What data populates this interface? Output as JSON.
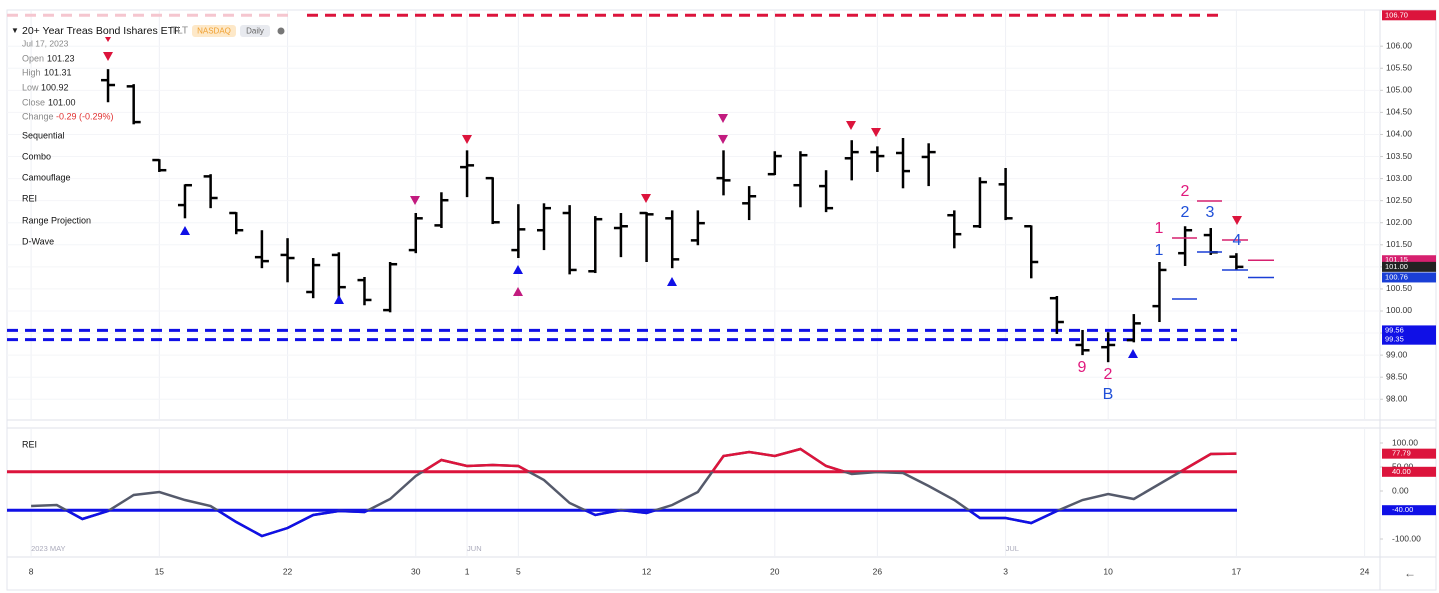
{
  "header": {
    "title": "20+ Year Treas Bond Ishares ETF",
    "symbol": "TLT",
    "exchange": "NASDAQ",
    "interval": "Daily",
    "date": "Jul 17, 2023",
    "open_label": "Open",
    "open_value": "101.23",
    "high_label": "High",
    "high_value": "101.31",
    "low_label": "Low",
    "low_value": "100.92",
    "close_label": "Close",
    "close_value": "101.00",
    "change_label": "Change",
    "change_value": "-0.29 (-0.29%)"
  },
  "menu": [
    "Sequential",
    "Combo",
    "Camouflage",
    "REI",
    "Range Projection",
    "D-Wave"
  ],
  "chart_data": [
    {
      "type": "ohlc",
      "color": "#000000",
      "x": [
        3,
        4,
        5,
        6,
        7,
        8,
        9,
        10,
        11,
        12,
        13,
        14,
        15,
        16,
        17,
        18,
        19,
        20,
        21,
        22,
        23,
        24,
        25,
        26,
        27,
        28,
        29,
        30,
        31,
        32,
        33,
        34,
        35,
        36,
        37,
        38,
        39,
        40,
        41,
        42,
        43,
        44,
        45,
        46,
        47
      ],
      "open": [
        105.23,
        105.09,
        103.42,
        102.4,
        103.05,
        102.22,
        101.22,
        101.27,
        100.43,
        101.27,
        100.7,
        100.02,
        101.38,
        101.94,
        103.26,
        103.01,
        101.38,
        101.83,
        102.22,
        100.9,
        101.88,
        102.22,
        102.1,
        101.6,
        103.01,
        102.44,
        103.1,
        102.85,
        102.83,
        103.46,
        103.6,
        103.58,
        103.49,
        102.17,
        101.92,
        102.87,
        101.92,
        100.29,
        99.23,
        99.18,
        99.34,
        100.11,
        101.31,
        101.72,
        101.23
      ],
      "high": [
        105.48,
        105.14,
        103.44,
        102.87,
        103.1,
        102.24,
        101.83,
        101.65,
        101.2,
        101.33,
        100.77,
        101.11,
        102.22,
        102.69,
        103.64,
        103.03,
        102.42,
        102.44,
        102.4,
        102.15,
        102.22,
        102.24,
        102.28,
        102.28,
        103.64,
        102.83,
        103.62,
        103.62,
        103.19,
        103.87,
        103.73,
        103.92,
        103.8,
        102.28,
        103.03,
        103.24,
        101.94,
        100.34,
        99.57,
        99.52,
        99.93,
        101.11,
        101.92,
        101.88,
        101.31
      ],
      "low": [
        104.73,
        104.23,
        103.15,
        102.1,
        102.33,
        101.74,
        100.97,
        100.65,
        100.29,
        100.29,
        100.13,
        99.97,
        101.31,
        101.88,
        102.58,
        101.97,
        101.2,
        101.38,
        100.83,
        100.86,
        101.22,
        101.11,
        100.97,
        101.49,
        102.62,
        102.06,
        103.08,
        102.35,
        102.24,
        102.96,
        103.15,
        102.78,
        102.83,
        101.42,
        101.88,
        102.06,
        100.74,
        99.48,
        99.0,
        98.84,
        99.29,
        99.75,
        101.02,
        101.27,
        100.92
      ],
      "close": [
        105.12,
        104.28,
        103.19,
        102.85,
        102.56,
        101.83,
        101.13,
        101.2,
        101.04,
        100.54,
        100.25,
        101.06,
        102.1,
        102.51,
        103.3,
        102.01,
        101.85,
        102.33,
        100.93,
        102.08,
        101.92,
        102.19,
        101.17,
        101.99,
        102.96,
        102.6,
        103.51,
        103.53,
        102.33,
        103.6,
        103.51,
        103.17,
        103.6,
        101.74,
        102.92,
        102.1,
        101.11,
        99.75,
        99.11,
        99.23,
        99.72,
        100.93,
        101.83,
        101.33,
        101.0
      ],
      "xlim": [
        -0.94,
        52.6
      ],
      "xticks": [
        {
          "value": 0,
          "label": "8"
        },
        {
          "value": 5,
          "label": "15"
        },
        {
          "value": 10,
          "label": "22"
        },
        {
          "value": 15,
          "label": "30"
        },
        {
          "value": 17,
          "label": "1"
        },
        {
          "value": 19,
          "label": "5"
        },
        {
          "value": 24,
          "label": "12"
        },
        {
          "value": 29,
          "label": "20"
        },
        {
          "value": 33,
          "label": "26"
        },
        {
          "value": 38,
          "label": "3"
        },
        {
          "value": 42,
          "label": "10"
        },
        {
          "value": 47,
          "label": "17"
        },
        {
          "value": 52,
          "label": "24"
        }
      ],
      "month_ticks": [
        {
          "value": 0,
          "label": "2023 MAY"
        },
        {
          "value": 17,
          "label": "JUN"
        },
        {
          "value": 38,
          "label": "JUL"
        }
      ],
      "ylim": [
        97.53,
        106.82
      ],
      "yticks": [
        {
          "value": 98,
          "label": "98.00"
        },
        {
          "value": 98.5,
          "label": "98.50"
        },
        {
          "value": 99,
          "label": "99.00"
        },
        {
          "value": 99.5,
          "label": "99.50"
        },
        {
          "value": 100,
          "label": "100.00"
        },
        {
          "value": 100.5,
          "label": "100.50"
        },
        {
          "value": 101,
          "label": "101.00"
        },
        {
          "value": 101.5,
          "label": "101.50"
        },
        {
          "value": 102,
          "label": "102.00"
        },
        {
          "value": 102.5,
          "label": "102.50"
        },
        {
          "value": 103,
          "label": "103.00"
        },
        {
          "value": 103.5,
          "label": "103.50"
        },
        {
          "value": 104,
          "label": "104.00"
        },
        {
          "value": 104.5,
          "label": "104.50"
        },
        {
          "value": 105,
          "label": "105.00"
        },
        {
          "value": 105.5,
          "label": "105.50"
        },
        {
          "value": 106,
          "label": "106.00"
        }
      ],
      "grid": true,
      "price_lines": [
        {
          "value": 106.7,
          "label": "106.70",
          "color": "#dc143c",
          "dashed": true
        },
        {
          "value": 101.15,
          "label": "101.15",
          "color": "#d6206f",
          "dashed": false
        },
        {
          "value": 101.0,
          "label": "101.00",
          "color": "#222222",
          "dashed": false
        },
        {
          "value": 100.76,
          "label": "100.76",
          "color": "#1a3fd6",
          "dashed": false
        },
        {
          "value": 99.56,
          "label": "99.56",
          "color": "#1010e6",
          "dashed": true
        },
        {
          "value": 99.35,
          "label": "99.35",
          "color": "#1010e6",
          "dashed": true
        }
      ],
      "annotations": [
        {
          "text": "9",
          "color": "#e0197d"
        },
        {
          "text": "2",
          "color": "#e0197d"
        },
        {
          "text": "B",
          "color": "#1f4fd8"
        },
        {
          "text": "1",
          "color": "#e0197d"
        },
        {
          "text": "1",
          "color": "#1f4fd8"
        },
        {
          "text": "2",
          "color": "#e0197d"
        },
        {
          "text": "2",
          "color": "#1f4fd8"
        },
        {
          "text": "3",
          "color": "#1f4fd8"
        },
        {
          "text": "4",
          "color": "#1f4fd8"
        }
      ]
    },
    {
      "type": "line",
      "title": "REI",
      "x": [
        0,
        1,
        2,
        3,
        4,
        5,
        6,
        7,
        8,
        9,
        10,
        11,
        12,
        13,
        14,
        15,
        16,
        17,
        18,
        19,
        20,
        21,
        22,
        23,
        24,
        25,
        26,
        27,
        28,
        29,
        30,
        31,
        32,
        33,
        34,
        35,
        36,
        37,
        38,
        39,
        40,
        41,
        42,
        43,
        44,
        45,
        46,
        47
      ],
      "values": [
        -31.3,
        -29.2,
        -58.3,
        -41.7,
        -8.3,
        -2.1,
        -18.8,
        -31.3,
        -64.6,
        -93.8,
        -77.1,
        -50,
        -41.7,
        -43.8,
        -16.7,
        31.3,
        64.6,
        52.1,
        54.2,
        52.1,
        22.9,
        -25,
        -50,
        -39.6,
        -45.8,
        -29.2,
        -2.1,
        72.9,
        81.3,
        72.9,
        87.5,
        52.1,
        35.4,
        39.6,
        37.5,
        10.4,
        -18.8,
        -56.3,
        -56.3,
        -66.7,
        -41.7,
        -18.8,
        -6.3,
        -16.7,
        14.6,
        45.8,
        77.1,
        77.79
      ],
      "color": "#555a6b",
      "ylim": [
        -137.5,
        131.25
      ],
      "yticks": [
        {
          "value": 100,
          "label": "100.00"
        },
        {
          "value": 50,
          "label": "50.00"
        },
        {
          "value": 0,
          "label": "0.00"
        },
        {
          "value": -100,
          "label": "-100.00"
        }
      ],
      "levels": [
        {
          "value": 40,
          "label": "40.00",
          "color": "#dc143c"
        },
        {
          "value": -40,
          "label": "-40.00",
          "color": "#1010e6"
        }
      ]
    }
  ]
}
